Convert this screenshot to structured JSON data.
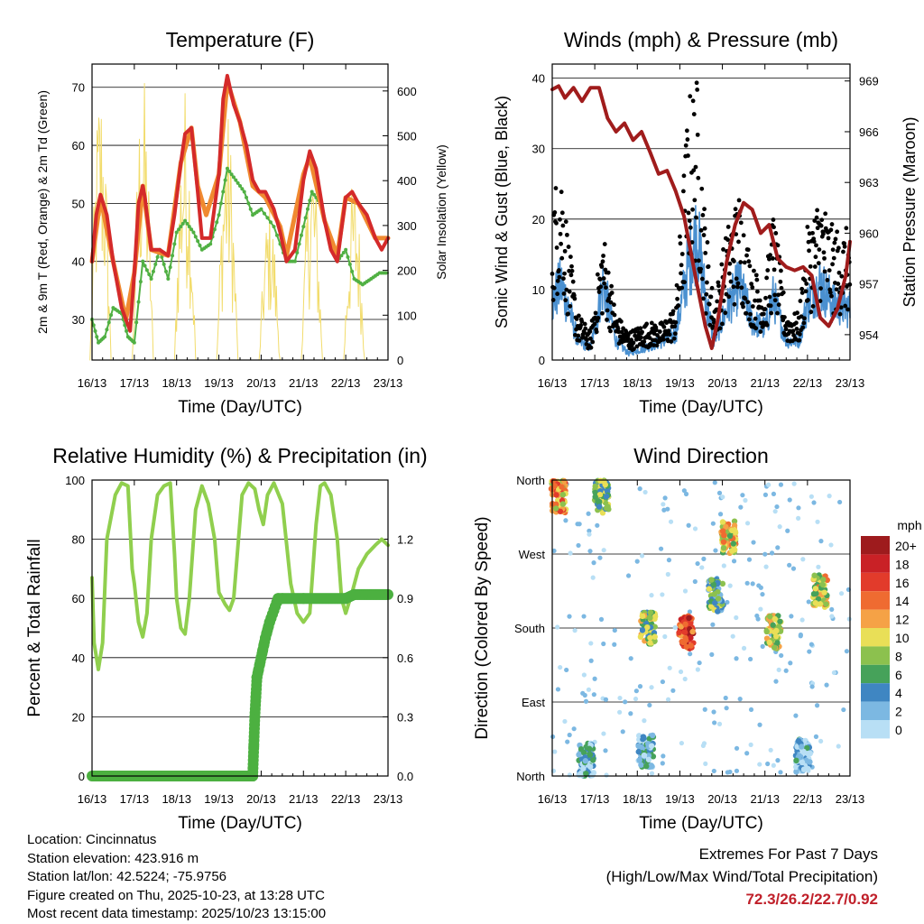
{
  "chart_data": [
    {
      "id": "temperature",
      "type": "line",
      "title": "Temperature (F)",
      "xlabel": "Time (Day/UTC)",
      "ylabel": "2m & 9m T (Red, Orange) & 2m Td (Green)",
      "ylabel_right": "Solar Insolation (Yellow)",
      "ylim": [
        23,
        74
      ],
      "ylim_right": [
        0,
        660
      ],
      "yticks": [
        30,
        40,
        50,
        60,
        70
      ],
      "yticks_right": [
        0,
        100,
        200,
        300,
        400,
        500,
        600
      ],
      "x_categories": [
        "16/13",
        "17/13",
        "18/13",
        "19/13",
        "20/13",
        "21/13",
        "22/13",
        "23/13"
      ],
      "grid": true,
      "series": [
        {
          "name": "2m T",
          "color": "#d42a2a",
          "x": [
            0,
            0.1,
            0.2,
            0.35,
            0.5,
            0.7,
            0.8,
            0.9,
            1.0,
            1.1,
            1.2,
            1.25,
            1.4,
            1.6,
            1.8,
            1.95,
            2.1,
            2.2,
            2.35,
            2.5,
            2.6,
            2.8,
            3.0,
            3.1,
            3.2,
            3.35,
            3.5,
            3.65,
            3.8,
            3.95,
            4.1,
            4.3,
            4.45,
            4.6,
            4.8,
            5.0,
            5.15,
            5.3,
            5.5,
            5.65,
            5.8,
            6.0,
            6.15,
            6.3,
            6.5,
            6.7,
            6.85,
            7.0
          ],
          "y": [
            40,
            48,
            51.5,
            48,
            40,
            32,
            30,
            28,
            38,
            50,
            53,
            51,
            42,
            42,
            41,
            48,
            57,
            62,
            63,
            52,
            44,
            44,
            55,
            68,
            72,
            67,
            64,
            60,
            54,
            52,
            52,
            49,
            45,
            40,
            42,
            54,
            59,
            56,
            47,
            42,
            40,
            51,
            52,
            50,
            48,
            44,
            42,
            44
          ]
        },
        {
          "name": "9m T",
          "color": "#f08a30",
          "x": [
            0,
            0.2,
            0.5,
            0.8,
            1.0,
            1.2,
            1.4,
            1.8,
            2.1,
            2.35,
            2.5,
            2.7,
            3.0,
            3.2,
            3.5,
            3.8,
            4.1,
            4.45,
            4.6,
            5.0,
            5.15,
            5.5,
            5.8,
            6.0,
            6.3,
            6.7,
            7.0
          ],
          "y": [
            40,
            51,
            40,
            30,
            38,
            53,
            42,
            41,
            57,
            63,
            53,
            48,
            55,
            71,
            64,
            53,
            51,
            46,
            41,
            55,
            58,
            47,
            41,
            51,
            50,
            44,
            44
          ]
        },
        {
          "name": "2m Td",
          "color": "#50b043",
          "x": [
            0,
            0.15,
            0.3,
            0.5,
            0.7,
            0.85,
            1.0,
            1.2,
            1.4,
            1.6,
            1.8,
            2.0,
            2.2,
            2.4,
            2.6,
            2.8,
            3.0,
            3.2,
            3.4,
            3.6,
            3.8,
            4.0,
            4.3,
            4.6,
            4.8,
            5.0,
            5.2,
            5.4,
            5.6,
            5.8,
            6.0,
            6.2,
            6.4,
            6.6,
            6.8,
            7.0
          ],
          "y": [
            30,
            26,
            27,
            32,
            31,
            27,
            26,
            40,
            37,
            42,
            37,
            45,
            47,
            45,
            42,
            43,
            48,
            56,
            54,
            52,
            48,
            49,
            46,
            40,
            40,
            46,
            52,
            50,
            44,
            40,
            42,
            37,
            36,
            37,
            38,
            38
          ]
        },
        {
          "name": "Solar Insolation",
          "color": "#f2dc6c",
          "axis": "right",
          "peaks": [
            [
              0.2,
              640
            ],
            [
              1.2,
              650
            ],
            [
              2.2,
              620
            ],
            [
              3.2,
              560
            ],
            [
              4.2,
              360
            ],
            [
              5.2,
              480
            ],
            [
              6.2,
              420
            ]
          ]
        }
      ]
    },
    {
      "id": "winds",
      "type": "scatter",
      "title": "Winds (mph) & Pressure (mb)",
      "xlabel": "Time (Day/UTC)",
      "ylabel": "Sonic Wind & Gust (Blue, Black)",
      "ylabel_right": "Station Pressure (Maroon)",
      "ylim": [
        0,
        42
      ],
      "ylim_right": [
        952.5,
        970
      ],
      "yticks": [
        0,
        10,
        20,
        30,
        40
      ],
      "yticks_right": [
        954,
        957,
        960,
        963,
        966,
        969
      ],
      "x_categories": [
        "16/13",
        "17/13",
        "18/13",
        "19/13",
        "20/13",
        "21/13",
        "22/13",
        "23/13"
      ],
      "grid": true,
      "series": [
        {
          "name": "Sonic Wind",
          "color": "#4a90d0",
          "profile": [
            [
              0,
              9
            ],
            [
              0.2,
              12
            ],
            [
              0.4,
              8
            ],
            [
              0.6,
              3
            ],
            [
              0.9,
              2
            ],
            [
              1.2,
              12
            ],
            [
              1.5,
              3
            ],
            [
              1.8,
              1
            ],
            [
              2.2,
              2
            ],
            [
              2.6,
              3
            ],
            [
              2.9,
              4
            ],
            [
              3.2,
              15
            ],
            [
              3.4,
              20
            ],
            [
              3.6,
              10
            ],
            [
              3.8,
              3
            ],
            [
              4.1,
              8
            ],
            [
              4.4,
              12
            ],
            [
              4.7,
              6
            ],
            [
              5.0,
              5
            ],
            [
              5.2,
              10
            ],
            [
              5.5,
              3
            ],
            [
              5.8,
              3
            ],
            [
              6.0,
              9
            ],
            [
              6.3,
              12
            ],
            [
              6.6,
              9
            ],
            [
              7.0,
              8
            ]
          ]
        },
        {
          "name": "Gust",
          "color": "#000000",
          "profile": [
            [
              0,
              17
            ],
            [
              0.2,
              22
            ],
            [
              0.4,
              12
            ],
            [
              0.6,
              5
            ],
            [
              0.9,
              3
            ],
            [
              1.2,
              14
            ],
            [
              1.5,
              5
            ],
            [
              1.8,
              3
            ],
            [
              2.2,
              4
            ],
            [
              2.6,
              4
            ],
            [
              2.9,
              6
            ],
            [
              3.2,
              28
            ],
            [
              3.4,
              30
            ],
            [
              3.6,
              15
            ],
            [
              3.8,
              6
            ],
            [
              4.1,
              14
            ],
            [
              4.4,
              18
            ],
            [
              4.7,
              10
            ],
            [
              5.0,
              8
            ],
            [
              5.2,
              16
            ],
            [
              5.5,
              5
            ],
            [
              5.8,
              5
            ],
            [
              6.0,
              14
            ],
            [
              6.3,
              18
            ],
            [
              6.6,
              14
            ],
            [
              7.0,
              14
            ]
          ]
        },
        {
          "name": "Station Pressure",
          "color": "#a01c1c",
          "axis": "right",
          "x": [
            0,
            0.15,
            0.3,
            0.5,
            0.7,
            0.9,
            1.1,
            1.3,
            1.5,
            1.7,
            1.9,
            2.1,
            2.3,
            2.5,
            2.7,
            2.9,
            3.1,
            3.25,
            3.4,
            3.6,
            3.75,
            3.9,
            4.1,
            4.3,
            4.5,
            4.7,
            4.9,
            5.1,
            5.3,
            5.5,
            5.7,
            5.9,
            6.1,
            6.3,
            6.5,
            6.7,
            6.9,
            7.0
          ],
          "y": [
            968.5,
            968.7,
            968,
            968.6,
            967.8,
            968.6,
            968.6,
            966.8,
            966,
            966.5,
            965.5,
            966,
            964.8,
            963.5,
            963.7,
            962.5,
            961,
            959,
            957,
            954.5,
            953.2,
            955,
            958.3,
            960.5,
            961.8,
            961.4,
            960,
            960.5,
            958.5,
            958,
            957.8,
            958,
            957.5,
            955,
            954.5,
            955.5,
            957.5,
            959.5
          ]
        }
      ]
    },
    {
      "id": "humidity",
      "type": "line",
      "title": "Relative Humidity (%) & Precipitation (in)",
      "xlabel": "Time (Day/UTC)",
      "ylabel": "Percent & Total Rainfall",
      "ylim": [
        0,
        100
      ],
      "ylim_right": [
        0,
        1.5
      ],
      "yticks": [
        0,
        20,
        40,
        60,
        80,
        100
      ],
      "yticks_right": [
        "0.0",
        "0.3",
        "0.6",
        "0.9",
        "1.2"
      ],
      "x_categories": [
        "16/13",
        "17/13",
        "18/13",
        "19/13",
        "20/13",
        "21/13",
        "22/13",
        "23/13"
      ],
      "grid": true,
      "series": [
        {
          "name": "Relative Humidity",
          "color": "#90cf4e",
          "x": [
            0,
            0.05,
            0.15,
            0.25,
            0.35,
            0.55,
            0.7,
            0.85,
            0.95,
            1.0,
            1.1,
            1.2,
            1.3,
            1.4,
            1.55,
            1.7,
            1.85,
            1.95,
            2.0,
            2.1,
            2.2,
            2.3,
            2.45,
            2.6,
            2.75,
            2.9,
            3.0,
            3.15,
            3.25,
            3.35,
            3.55,
            3.7,
            3.85,
            3.95,
            4.05,
            4.15,
            4.3,
            4.5,
            4.7,
            4.85,
            5.0,
            5.15,
            5.3,
            5.4,
            5.5,
            5.65,
            5.8,
            5.9,
            6.0,
            6.15,
            6.3,
            6.5,
            6.7,
            6.85,
            7.0
          ],
          "y": [
            67,
            45,
            36,
            45,
            80,
            95,
            99,
            98,
            70,
            65,
            52,
            47,
            55,
            80,
            95,
            98,
            99,
            75,
            60,
            50,
            48,
            60,
            90,
            98,
            92,
            80,
            62,
            58,
            56,
            60,
            95,
            99,
            97,
            90,
            85,
            95,
            99,
            92,
            65,
            55,
            52,
            55,
            85,
            98,
            99,
            95,
            80,
            60,
            55,
            62,
            70,
            75,
            78,
            80,
            78
          ]
        },
        {
          "name": "Total Rainfall",
          "color": "#4cb040",
          "axis": "right",
          "x": [
            0,
            3.8,
            3.85,
            3.9,
            4.0,
            4.1,
            4.2,
            4.3,
            4.4,
            4.5,
            5.0,
            6.0,
            6.2,
            7.0
          ],
          "y": [
            0,
            0,
            0.3,
            0.5,
            0.6,
            0.7,
            0.78,
            0.84,
            0.9,
            0.9,
            0.9,
            0.9,
            0.92,
            0.92
          ]
        }
      ]
    },
    {
      "id": "direction",
      "type": "scatter",
      "title": "Wind Direction",
      "xlabel": "Time (Day/UTC)",
      "ylabel": "Direction (Colored By Speed)",
      "yticks": [
        "North",
        "East",
        "South",
        "West",
        "North"
      ],
      "x_categories": [
        "16/13",
        "17/13",
        "18/13",
        "19/13",
        "20/13",
        "21/13",
        "22/13",
        "23/13"
      ],
      "grid": true,
      "legend": {
        "title": "mph",
        "labels": [
          "20+",
          "18",
          "16",
          "14",
          "12",
          "10",
          "8",
          "6",
          "4",
          "2",
          "0"
        ],
        "colors": [
          "#9e1b1d",
          "#c92126",
          "#e23b2b",
          "#ef6b31",
          "#f5a246",
          "#e9df57",
          "#8cc14e",
          "#46a25a",
          "#3f86c2",
          "#7cb8e2",
          "#b8dff5"
        ]
      },
      "clusters": [
        {
          "x": 0.15,
          "y": 340,
          "speed": 12
        },
        {
          "x": 1.15,
          "y": 340,
          "speed": 7
        },
        {
          "x": 2.25,
          "y": 180,
          "speed": 8
        },
        {
          "x": 3.15,
          "y": 175,
          "speed": 16
        },
        {
          "x": 3.85,
          "y": 220,
          "speed": 6
        },
        {
          "x": 4.15,
          "y": 290,
          "speed": 10
        },
        {
          "x": 5.2,
          "y": 175,
          "speed": 9
        },
        {
          "x": 6.3,
          "y": 225,
          "speed": 10
        },
        {
          "x": 0.8,
          "y": 20,
          "speed": 3
        },
        {
          "x": 2.2,
          "y": 30,
          "speed": 3
        },
        {
          "x": 5.9,
          "y": 25,
          "speed": 2
        }
      ]
    }
  ],
  "info": {
    "location": "Location: Cincinnatus",
    "elevation": "Station elevation: 423.916 m",
    "latlon": "Station lat/lon: 42.5224; -75.9756",
    "created": "Figure created on Thu, 2025-10-23, at 13:28 UTC",
    "recent": "Most recent data timestamp: 2025/10/23 13:15:00"
  },
  "extremes": {
    "heading": "Extremes For Past 7 Days",
    "subheading": "(High/Low/Max Wind/Total Precipitation)",
    "values": "72.3/26.2/22.7/0.92"
  }
}
